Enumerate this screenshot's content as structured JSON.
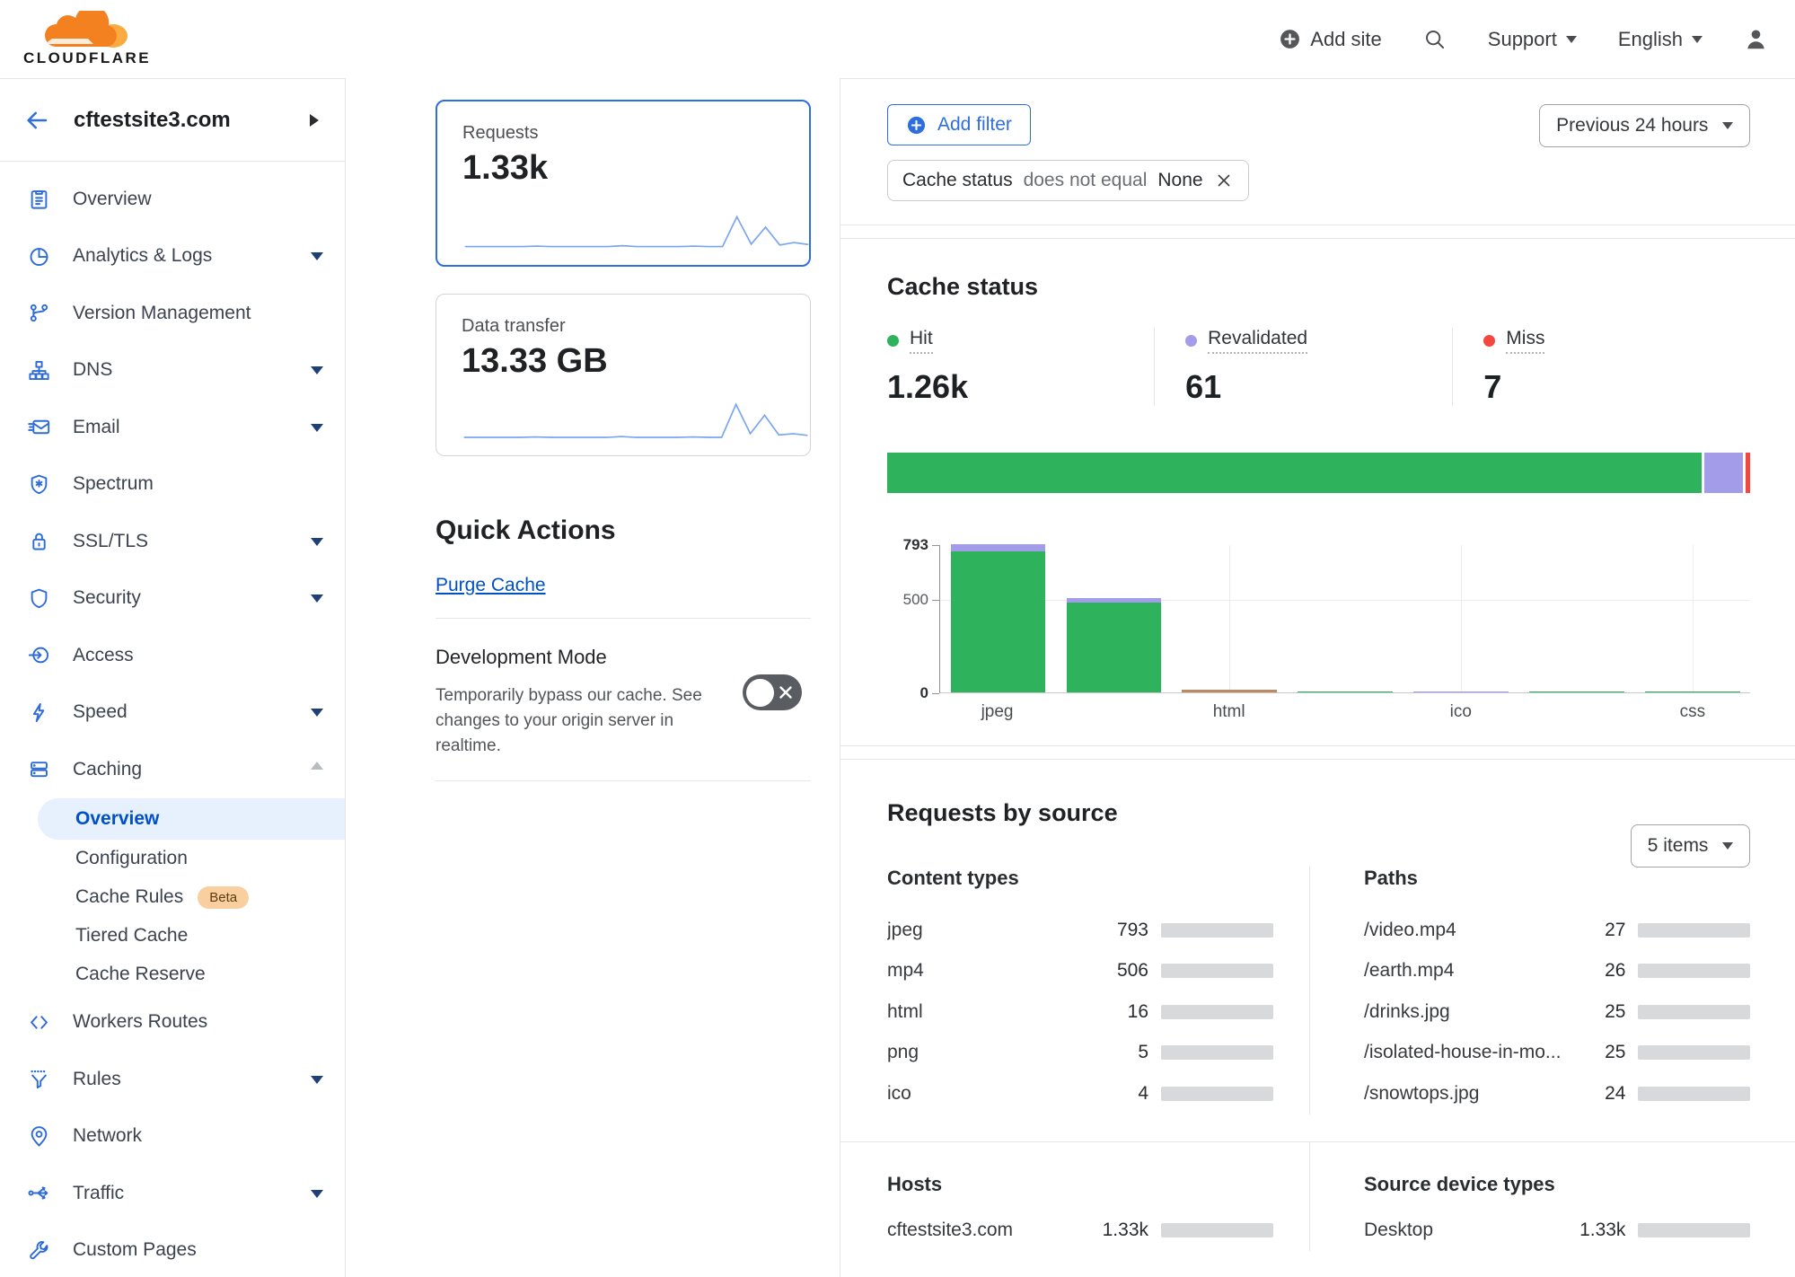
{
  "header": {
    "brand": "CLOUDFLARE",
    "add_site_label": "Add site",
    "support_label": "Support",
    "language_label": "English"
  },
  "sidebar": {
    "site_name": "cftestsite3.com",
    "items": [
      {
        "label": "Overview"
      },
      {
        "label": "Analytics & Logs"
      },
      {
        "label": "Version Management"
      },
      {
        "label": "DNS"
      },
      {
        "label": "Email"
      },
      {
        "label": "Spectrum"
      },
      {
        "label": "SSL/TLS"
      },
      {
        "label": "Security"
      },
      {
        "label": "Access"
      },
      {
        "label": "Speed"
      },
      {
        "label": "Caching"
      },
      {
        "label": "Workers Routes"
      },
      {
        "label": "Rules"
      },
      {
        "label": "Network"
      },
      {
        "label": "Traffic"
      },
      {
        "label": "Custom Pages"
      }
    ],
    "caching_sub": [
      {
        "label": "Overview",
        "active": true
      },
      {
        "label": "Configuration"
      },
      {
        "label": "Cache Rules",
        "badge": "Beta"
      },
      {
        "label": "Tiered Cache"
      },
      {
        "label": "Cache Reserve"
      }
    ]
  },
  "summary_cards": [
    {
      "title": "Requests",
      "value": "1.33k",
      "selected": true
    },
    {
      "title": "Data transfer",
      "value": "13.33 GB",
      "selected": false
    }
  ],
  "quick_actions": {
    "title": "Quick Actions",
    "purge_cache_label": "Purge Cache",
    "dev_mode_title": "Development Mode",
    "dev_mode_description": "Temporarily bypass our cache. See changes to your origin server in realtime.",
    "dev_mode_enabled": false
  },
  "filters": {
    "add_filter_label": "Add filter",
    "active_filter": {
      "field": "Cache status",
      "operator": "does not equal",
      "value": "None"
    },
    "time_range": "Previous 24 hours"
  },
  "cache_status_section": {
    "title": "Cache status"
  },
  "requests_by_source": {
    "title": "Requests by source",
    "items_selector": "5 items",
    "groups": [
      {
        "title": "Content types",
        "rows": [
          {
            "label": "jpeg",
            "display": "793",
            "value": 793
          },
          {
            "label": "mp4",
            "display": "506",
            "value": 506
          },
          {
            "label": "html",
            "display": "16",
            "value": 16
          },
          {
            "label": "png",
            "display": "5",
            "value": 5
          },
          {
            "label": "ico",
            "display": "4",
            "value": 4
          }
        ]
      },
      {
        "title": "Paths",
        "rows": [
          {
            "label": "/video.mp4",
            "display": "27",
            "value": 27
          },
          {
            "label": "/earth.mp4",
            "display": "26",
            "value": 26
          },
          {
            "label": "/drinks.jpg",
            "display": "25",
            "value": 25
          },
          {
            "label": "/isolated-house-in-mo...",
            "display": "25",
            "value": 25
          },
          {
            "label": "/snowtops.jpg",
            "display": "24",
            "value": 24
          }
        ]
      },
      {
        "title": "Hosts",
        "rows": [
          {
            "label": "cftestsite3.com",
            "display": "1.33k",
            "value": 1330
          }
        ]
      },
      {
        "title": "Source device types",
        "rows": [
          {
            "label": "Desktop",
            "display": "1.33k",
            "value": 1330
          }
        ]
      }
    ]
  },
  "chart_data": {
    "requests_total": 1330,
    "sparklines": [
      {
        "type": "line",
        "title": "Requests",
        "value_label": "1.33k",
        "points": [
          4,
          4,
          4,
          4,
          4,
          5,
          4,
          4,
          4,
          4,
          4,
          6,
          4,
          4,
          4,
          4,
          5,
          4,
          4,
          78,
          10,
          52,
          8,
          14,
          9
        ]
      },
      {
        "type": "line",
        "title": "Data transfer",
        "value_label": "13.33 GB",
        "points": [
          3,
          3,
          3,
          3,
          3,
          4,
          3,
          3,
          3,
          3,
          3,
          5,
          3,
          3,
          3,
          3,
          4,
          3,
          3,
          85,
          12,
          58,
          9,
          12,
          8
        ]
      }
    ],
    "cache_status": {
      "type": "bar",
      "title": "Cache status",
      "stats": [
        {
          "label": "Hit",
          "display": "1.26k",
          "value": 1260,
          "key": "hit"
        },
        {
          "label": "Revalidated",
          "display": "61",
          "value": 61,
          "key": "revalidated"
        },
        {
          "label": "Miss",
          "display": "7",
          "value": 7,
          "key": "miss"
        }
      ],
      "colors": {
        "hit": "#2eb35c",
        "revalidated": "#a29ce9",
        "miss": "#f4473f",
        "other": "#bb8a63"
      },
      "ylim": [
        0,
        793
      ],
      "y_ticks": [
        793,
        500,
        0
      ],
      "slot_labels": [
        "jpeg",
        "",
        "html",
        "",
        "ico",
        "",
        "css"
      ],
      "bars": [
        {
          "hit": 757,
          "revalidated": 36
        },
        {
          "hit": 482,
          "revalidated": 24
        },
        {
          "other": 16
        },
        {
          "hit": 5
        },
        {
          "revalidated": 4
        },
        {
          "hit": 2
        },
        {
          "hit": 2
        }
      ],
      "legend_position": "top",
      "grid": true
    }
  }
}
